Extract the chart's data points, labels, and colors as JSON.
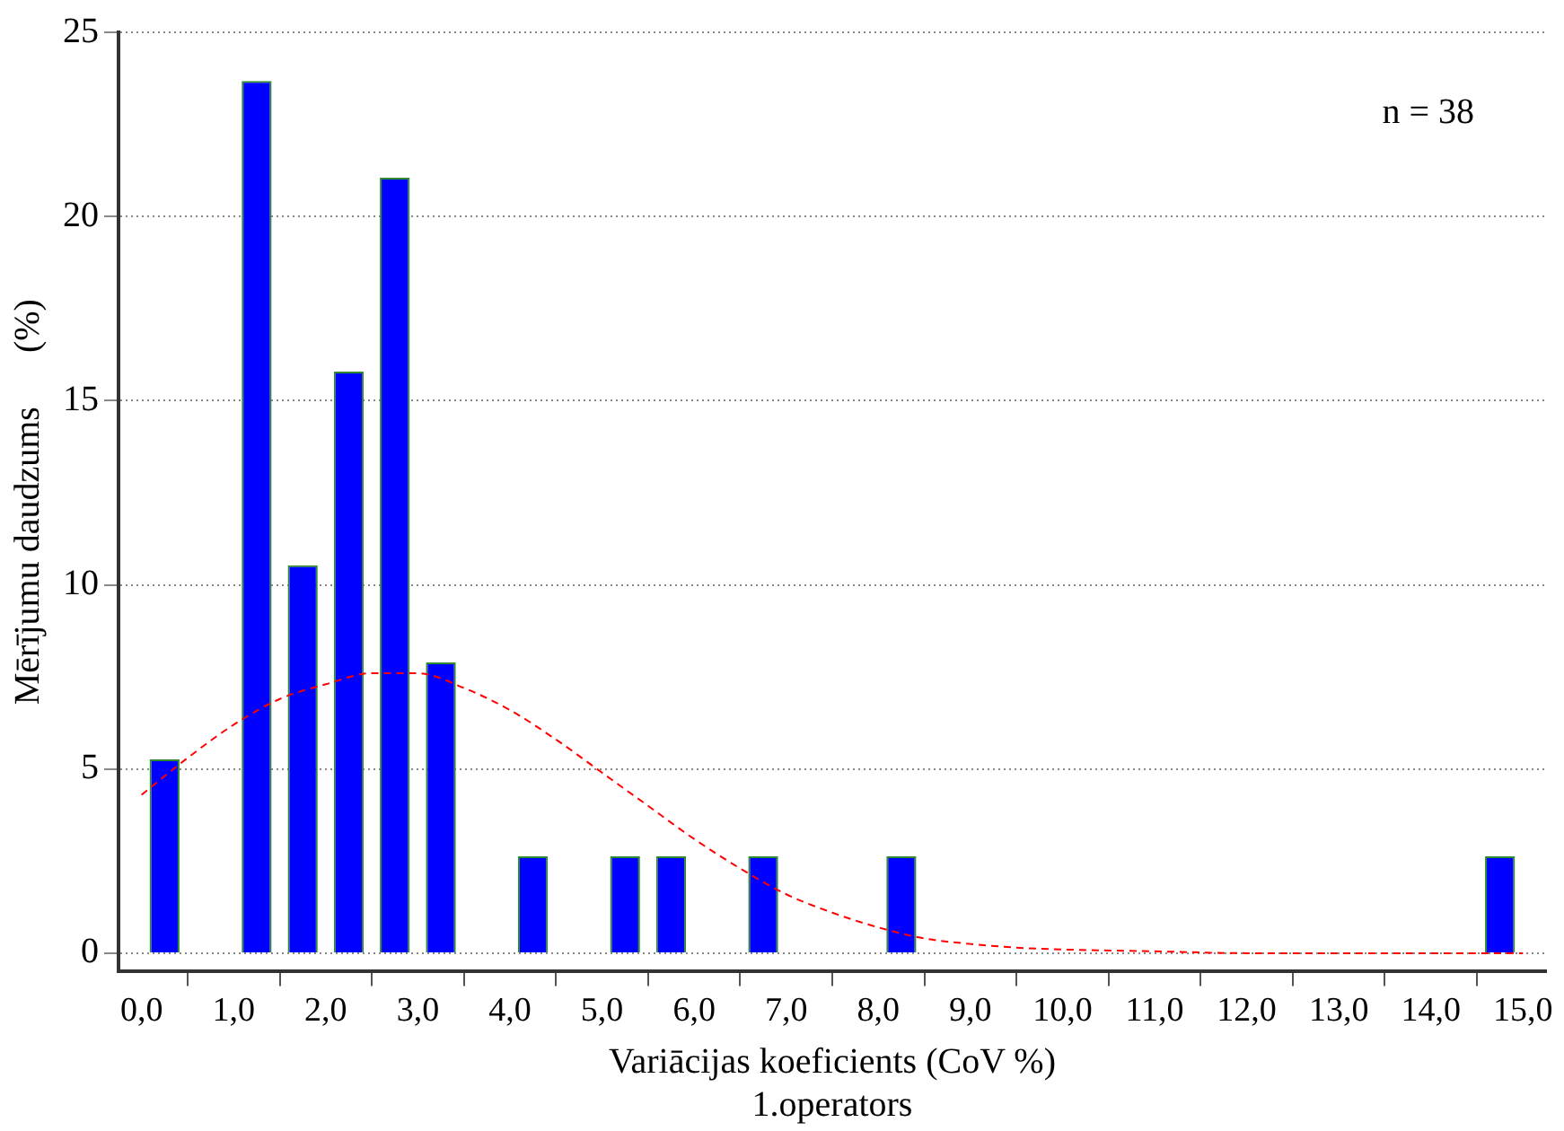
{
  "chart_data": {
    "type": "histogram",
    "xlabel": "Variācijas koeficients (CoV %)\n1.operators",
    "ylabel": "Mērījumu daudzums      (%)",
    "annotations": [
      "n = 38"
    ],
    "bins": [
      0,
      0.5,
      1,
      1.5,
      2,
      2.5,
      3,
      3.5,
      4,
      4.5,
      5,
      5.5,
      6,
      6.5,
      7,
      7.5,
      8,
      8.5,
      9,
      9.5,
      10,
      10.5,
      11,
      11.5,
      12,
      12.5,
      13,
      13.5,
      14,
      14.5,
      15
    ],
    "values": [
      5.26,
      0,
      23.68,
      10.53,
      15.79,
      21.05,
      7.89,
      0,
      2.63,
      0,
      2.63,
      2.63,
      0,
      2.63,
      0,
      0,
      2.63,
      0,
      0,
      0,
      0,
      0,
      0,
      0,
      0,
      0,
      0,
      0,
      0,
      2.63
    ],
    "color": "#0000ff",
    "series": [
      {
        "type": "line",
        "color": "#ff0000",
        "line_style": "dashed",
        "marker": "none",
        "x": [
          0,
          0.5,
          1,
          1.5,
          2,
          2.5,
          3,
          3.5,
          4,
          4.5,
          5,
          5.5,
          6,
          6.5,
          7,
          7.5,
          8,
          8.5,
          9,
          9.5,
          10,
          11,
          12,
          13,
          14,
          15
        ],
        "values": [
          4.3,
          5.3,
          6.2,
          6.9,
          7.3,
          7.6,
          7.6,
          7.2,
          6.6,
          5.8,
          4.9,
          4.0,
          3.1,
          2.3,
          1.6,
          1.1,
          0.7,
          0.4,
          0.25,
          0.15,
          0.1,
          0.05,
          0,
          0,
          0,
          0
        ]
      }
    ],
    "xlim": [
      -0.25,
      15.25
    ],
    "xticks": [
      {
        "value": 0,
        "label": "0,0"
      },
      {
        "value": 1,
        "label": "1,0"
      },
      {
        "value": 2,
        "label": "2,0"
      },
      {
        "value": 3,
        "label": "3,0"
      },
      {
        "value": 4,
        "label": "4,0"
      },
      {
        "value": 5,
        "label": "5,0"
      },
      {
        "value": 6,
        "label": "6,0"
      },
      {
        "value": 7,
        "label": "7,0"
      },
      {
        "value": 8,
        "label": "8,0"
      },
      {
        "value": 9,
        "label": "9,0"
      },
      {
        "value": 10,
        "label": "10,0"
      },
      {
        "value": 11,
        "label": "11,0"
      },
      {
        "value": 12,
        "label": "12,0"
      },
      {
        "value": 13,
        "label": "13,0"
      },
      {
        "value": 14,
        "label": "14,0"
      },
      {
        "value": 15,
        "label": "15,0"
      }
    ],
    "ylim": [
      -0.5,
      25
    ],
    "yticks": [
      0,
      5,
      10,
      15,
      20,
      25
    ],
    "grid": "y",
    "legend": false
  }
}
